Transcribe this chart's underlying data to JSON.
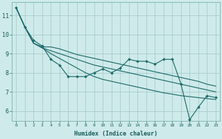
{
  "xlabel": "Humidex (Indice chaleur)",
  "bg_color": "#ceeaea",
  "grid_color": "#aacccc",
  "line_color": "#1f6b6b",
  "xlim": [
    -0.5,
    23.5
  ],
  "ylim": [
    5.5,
    11.7
  ],
  "series_zigzag": [
    11.4,
    10.4,
    9.7,
    9.4,
    8.7,
    8.4,
    7.8,
    7.8,
    7.8,
    8.0,
    8.2,
    8.0,
    8.25,
    8.7,
    8.6,
    8.6,
    8.45,
    8.7,
    8.7,
    7.4,
    5.55,
    6.2,
    6.8,
    6.7
  ],
  "series_smooth": [
    [
      11.4,
      10.4,
      9.55,
      9.35,
      9.35,
      9.25,
      9.1,
      8.95,
      8.85,
      8.75,
      8.65,
      8.55,
      8.45,
      8.35,
      8.25,
      8.15,
      8.05,
      7.95,
      7.85,
      7.75,
      7.65,
      7.55,
      7.4,
      7.3
    ],
    [
      11.4,
      10.4,
      9.55,
      9.3,
      9.15,
      9.0,
      8.85,
      8.7,
      8.55,
      8.4,
      8.3,
      8.2,
      8.1,
      8.0,
      7.9,
      7.8,
      7.7,
      7.6,
      7.5,
      7.4,
      7.3,
      7.2,
      7.1,
      7.0
    ],
    [
      11.4,
      10.4,
      9.55,
      9.3,
      9.0,
      8.75,
      8.5,
      8.25,
      8.0,
      7.8,
      7.65,
      7.55,
      7.45,
      7.35,
      7.25,
      7.15,
      7.05,
      6.95,
      6.88,
      6.8,
      6.75,
      6.7,
      6.65,
      6.6
    ]
  ],
  "yticks": [
    6,
    7,
    8,
    9,
    10,
    11
  ],
  "xtick_labels": [
    "0",
    "1",
    "2",
    "3",
    "4",
    "5",
    "6",
    "7",
    "8",
    "9",
    "10",
    "11",
    "12",
    "13",
    "14",
    "15",
    "16",
    "17",
    "18",
    "19",
    "20",
    "21",
    "22",
    "23"
  ]
}
